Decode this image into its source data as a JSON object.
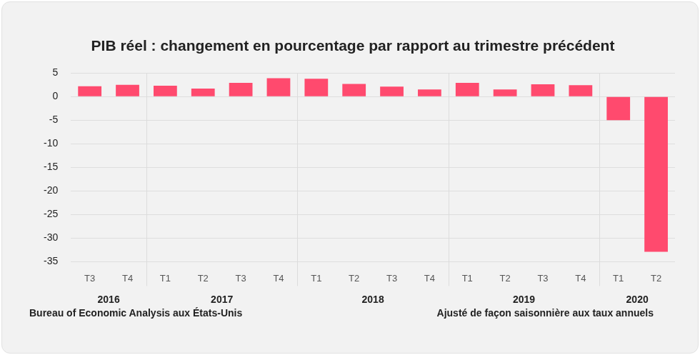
{
  "chart_data": {
    "type": "bar",
    "title": "PIB réel : changement en pourcentage par rapport au trimestre précédent",
    "categories": [
      "T3",
      "T4",
      "T1",
      "T2",
      "T3",
      "T4",
      "T1",
      "T2",
      "T3",
      "T4",
      "T1",
      "T2",
      "T3",
      "T4",
      "T1",
      "T2"
    ],
    "groups": [
      {
        "label": "2016",
        "categories": [
          "T3",
          "T4"
        ]
      },
      {
        "label": "2017",
        "categories": [
          "T1",
          "T2",
          "T3",
          "T4"
        ]
      },
      {
        "label": "2018",
        "categories": [
          "T1",
          "T2",
          "T3",
          "T4"
        ]
      },
      {
        "label": "2019",
        "categories": [
          "T1",
          "T2",
          "T3",
          "T4"
        ]
      },
      {
        "label": "2020",
        "categories": [
          "T1",
          "T2"
        ]
      }
    ],
    "values": [
      2.2,
      2.5,
      2.3,
      1.7,
      2.9,
      3.9,
      3.8,
      2.7,
      2.1,
      1.5,
      2.9,
      1.5,
      2.6,
      2.4,
      -5.0,
      -32.9
    ],
    "color": "#ff4a6e",
    "ylim": [
      -35,
      5
    ],
    "yticks": [
      5,
      0,
      -5,
      -10,
      -15,
      -20,
      -25,
      -30,
      -35
    ],
    "grid": true,
    "source": "Bureau of Economic Analysis aux États-Unis",
    "note": "Ajusté de façon saisonnière aux taux annuels"
  }
}
